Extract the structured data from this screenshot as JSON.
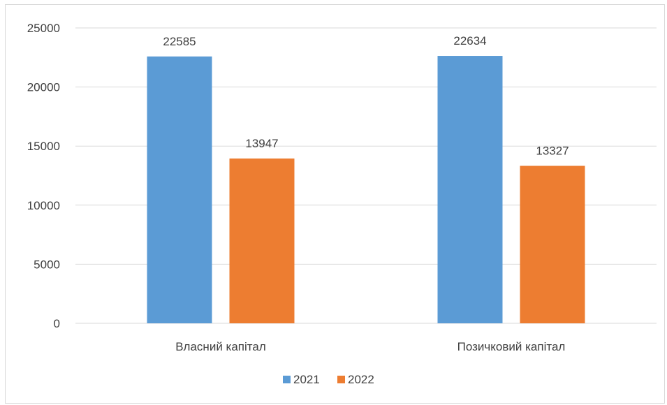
{
  "chart_data": {
    "type": "bar",
    "categories": [
      "Власний капітал",
      "Позичковий капітал"
    ],
    "series": [
      {
        "name": "2021",
        "values": [
          22585,
          22634
        ],
        "color": "#5B9BD5"
      },
      {
        "name": "2022",
        "values": [
          13947,
          13327
        ],
        "color": "#ED7D31"
      }
    ],
    "yticks": [
      "0",
      "5000",
      "10000",
      "15000",
      "20000",
      "25000"
    ],
    "ylim": [
      0,
      25000
    ],
    "grid": true,
    "legend_position": "bottom",
    "data_labels": [
      "22585",
      "13947",
      "22634",
      "13327"
    ]
  }
}
